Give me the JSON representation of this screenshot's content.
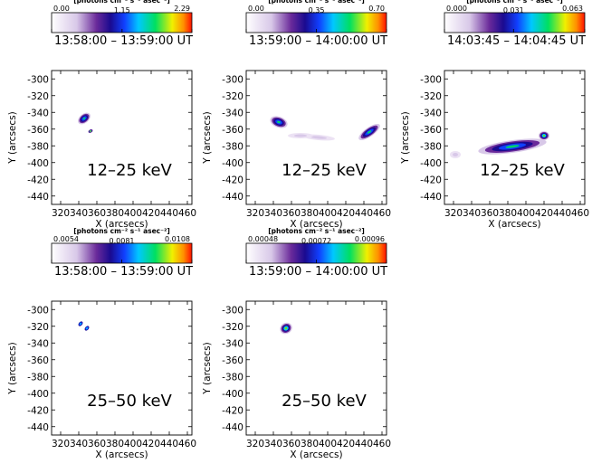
{
  "chart_data": [
    {
      "type": "image",
      "title": "13:58:00 – 13:59:00 UT",
      "annotation": "12–25 keV",
      "colorbar": {
        "label": "[photons cm⁻² s⁻¹ asec⁻²]",
        "clim": [
          0,
          2.29
        ],
        "ticks": [
          {
            "value": 0,
            "label": "0.00"
          },
          1.15,
          2.29
        ]
      },
      "xlabel": "X (arcsecs)",
      "ylabel": "Y (arcsecs)",
      "xlim": [
        310,
        465
      ],
      "ylim": [
        -450,
        -290
      ],
      "xticks": [
        320,
        340,
        360,
        380,
        400,
        420,
        440,
        460
      ],
      "yticks": [
        -300,
        -320,
        -340,
        -360,
        -380,
        -400,
        -420,
        -440
      ]
    },
    {
      "type": "image",
      "title": "13:59:00 – 14:00:00 UT",
      "annotation": "12–25 keV",
      "colorbar": {
        "label": "[photons cm⁻² s⁻¹ asec⁻²]",
        "clim": [
          0,
          0.7
        ],
        "ticks": [
          {
            "value": 0,
            "label": "0.00"
          },
          0.35,
          {
            "value": 0.7,
            "label": "0.70"
          }
        ]
      },
      "xlabel": "X (arcsecs)",
      "ylabel": "Y (arcsecs)",
      "xlim": [
        310,
        465
      ],
      "ylim": [
        -450,
        -290
      ],
      "xticks": [
        320,
        340,
        360,
        380,
        400,
        420,
        440,
        460
      ],
      "yticks": [
        -300,
        -320,
        -340,
        -360,
        -380,
        -400,
        -420,
        -440
      ]
    },
    {
      "type": "image",
      "title": "14:03:45 – 14:04:45 UT",
      "annotation": "12–25 keV",
      "colorbar": {
        "label": "[photons cm⁻² s⁻¹ asec⁻²]",
        "clim": [
          0,
          0.063
        ],
        "ticks": [
          {
            "value": 0,
            "label": "0.000"
          },
          0.031,
          0.063
        ]
      },
      "xlabel": "X (arcsecs)",
      "ylabel": "Y (arcsecs)",
      "xlim": [
        310,
        465
      ],
      "ylim": [
        -450,
        -290
      ],
      "xticks": [
        320,
        340,
        360,
        380,
        400,
        420,
        440,
        460
      ],
      "yticks": [
        -300,
        -320,
        -340,
        -360,
        -380,
        -400,
        -420,
        -440
      ]
    },
    {
      "type": "image",
      "title": "13:58:00 – 13:59:00 UT",
      "annotation": "25–50 keV",
      "colorbar": {
        "label": "[photons cm⁻² s⁻¹ asec⁻²]",
        "clim": [
          0.0054,
          0.0108
        ],
        "ticks": [
          0.0054,
          0.0081,
          0.0108
        ]
      },
      "xlabel": "X (arcsecs)",
      "ylabel": "Y (arcsecs)",
      "xlim": [
        310,
        465
      ],
      "ylim": [
        -450,
        -290
      ],
      "xticks": [
        320,
        340,
        360,
        380,
        400,
        420,
        440,
        460
      ],
      "yticks": [
        -300,
        -320,
        -340,
        -360,
        -380,
        -400,
        -420,
        -440
      ]
    },
    {
      "type": "image",
      "title": "13:59:00 – 14:00:00 UT",
      "annotation": "25–50 keV",
      "colorbar": {
        "label": "[photons cm⁻² s⁻¹ asec⁻²]",
        "clim": [
          0.00048,
          0.00096
        ],
        "ticks": [
          0.00048,
          0.00072,
          0.00096
        ]
      },
      "xlabel": "X (arcsecs)",
      "ylabel": "Y (arcsecs)",
      "xlim": [
        310,
        465
      ],
      "ylim": [
        -450,
        -290
      ],
      "xticks": [
        320,
        340,
        360,
        380,
        400,
        420,
        440,
        460
      ],
      "yticks": [
        -300,
        -320,
        -340,
        -360,
        -380,
        -400,
        -420,
        -440
      ]
    }
  ]
}
